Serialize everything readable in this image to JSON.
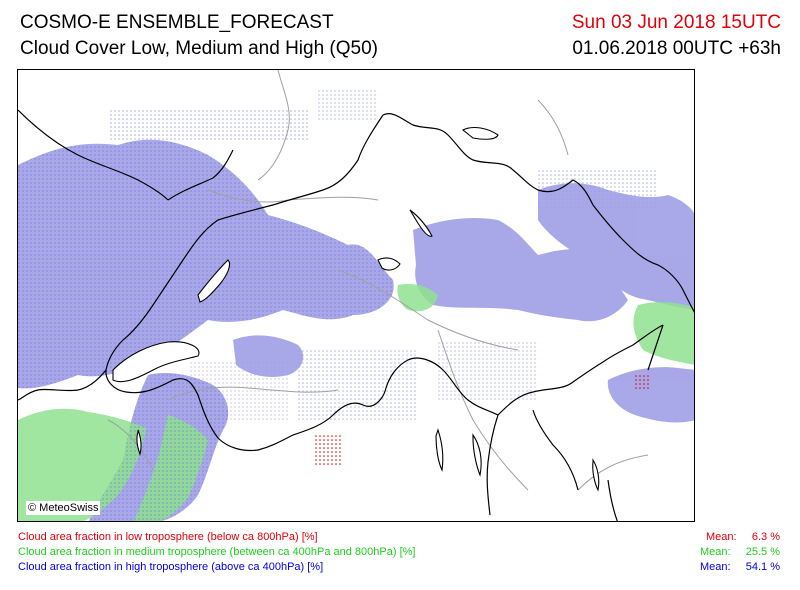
{
  "header": {
    "title": "COSMO-E ENSEMBLE_FORECAST",
    "subtitle": "Cloud Cover Low, Medium and High (Q50)",
    "valid_time": "Sun 03 Jun 2018 15UTC",
    "run_time": "01.06.2018 00UTC +63h"
  },
  "map": {
    "copyright": "© MeteoSwiss"
  },
  "legend": [
    {
      "label": "Cloud area fraction in low troposphere (below ca 800hPa) [%]",
      "mean_label": "Mean:",
      "mean_value": "6.3 %",
      "color": "#e0000a"
    },
    {
      "label": "Cloud area fraction in medium troposphere (between ca 400hPa and 800hPa) [%]",
      "mean_label": "Mean:",
      "mean_value": "25.5 %",
      "color": "#22cc22"
    },
    {
      "label": "Cloud area fraction in high troposphere (above ca 400hPa) [%]",
      "mean_label": "Mean:",
      "mean_value": "54.1 %",
      "color": "#0000dd"
    }
  ],
  "colors": {
    "high_cloud_fill": "#9a9ae6",
    "medium_cloud_fill": "#8fe08f",
    "low_cloud": "#e0000a",
    "border": "#000000",
    "secondary_border": "#a0a0a0"
  }
}
